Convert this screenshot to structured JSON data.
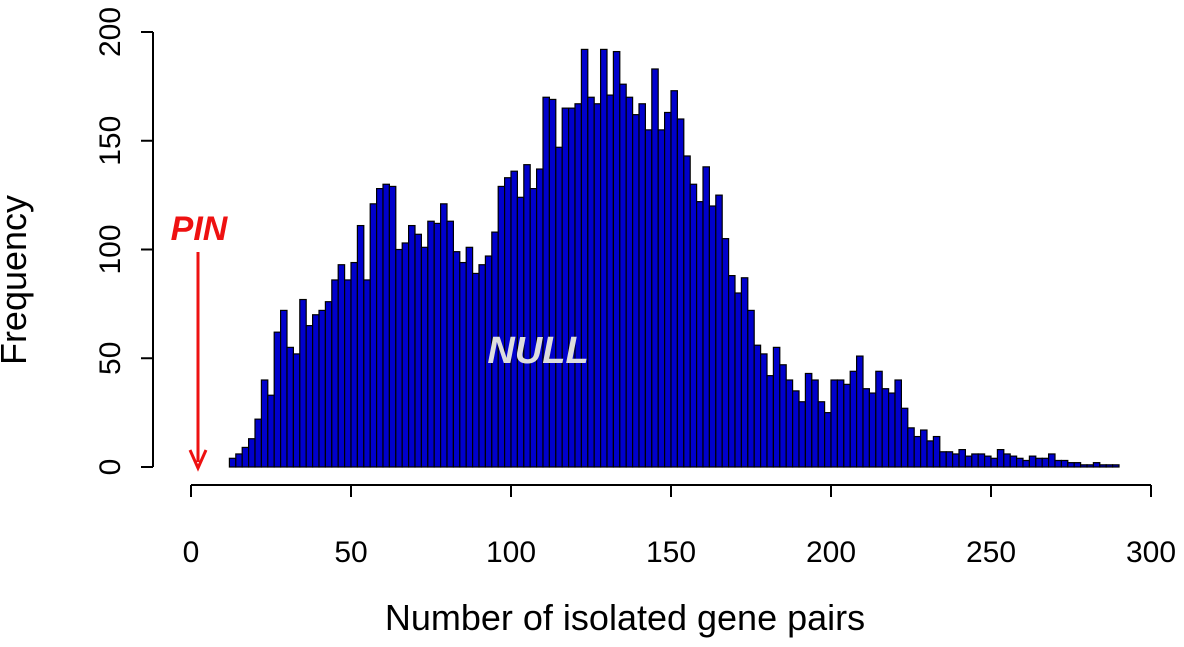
{
  "chart_data": {
    "type": "histogram",
    "xlabel": "Number of isolated gene pairs",
    "ylabel": "Frequency",
    "annotations": [
      "PIN",
      "NULL"
    ],
    "color": "#0000cc",
    "annotation_colors": [
      "#ee1111",
      "#dddddd"
    ],
    "xlim": [
      0,
      300
    ],
    "xticks": [
      0,
      50,
      100,
      150,
      200,
      250,
      300
    ],
    "ylim": [
      0,
      200
    ],
    "yticks": [
      0,
      50,
      100,
      150,
      200
    ],
    "bins": [
      12,
      14,
      16,
      18,
      20,
      22,
      24,
      26,
      28,
      30,
      32,
      34,
      36,
      38,
      40,
      42,
      44,
      46,
      48,
      50,
      52,
      54,
      56,
      58,
      60,
      62,
      64,
      66,
      68,
      70,
      72,
      74,
      76,
      78,
      80,
      82,
      84,
      86,
      88,
      90,
      92,
      94,
      96,
      98,
      100,
      102,
      104,
      106,
      108,
      110,
      112,
      114,
      116,
      118,
      120,
      122,
      124,
      126,
      128,
      130,
      132,
      134,
      136,
      138,
      140,
      142,
      144,
      146,
      148,
      150,
      152,
      154,
      156,
      158,
      160,
      162,
      164,
      166,
      168,
      170,
      172,
      174,
      176,
      178,
      180,
      182,
      184,
      186,
      188,
      190,
      192,
      194,
      196,
      198,
      200,
      202,
      204,
      206,
      208,
      210,
      212,
      214,
      216,
      218,
      220,
      222,
      224,
      226,
      228,
      230,
      232,
      234,
      236,
      238,
      240,
      242,
      244,
      246,
      248,
      250,
      252,
      254,
      256,
      258,
      260,
      262,
      264,
      266,
      268,
      270,
      272,
      274,
      276,
      278,
      280,
      282,
      284,
      286,
      288,
      290
    ],
    "values": [
      4,
      6,
      9,
      13,
      22,
      40,
      33,
      62,
      72,
      55,
      52,
      77,
      65,
      70,
      72,
      76,
      86,
      93,
      86,
      94,
      111,
      86,
      121,
      128,
      130,
      129,
      100,
      103,
      111,
      107,
      101,
      113,
      112,
      121,
      113,
      99,
      94,
      101,
      89,
      93,
      97,
      108,
      129,
      133,
      136,
      124,
      139,
      128,
      137,
      170,
      169,
      147,
      165,
      165,
      167,
      192,
      170,
      167,
      192,
      171,
      191,
      176,
      170,
      162,
      167,
      155,
      183,
      155,
      163,
      173,
      160,
      143,
      130,
      122,
      138,
      120,
      125,
      105,
      88,
      80,
      87,
      72,
      56,
      52,
      42,
      55,
      47,
      40,
      35,
      30,
      43,
      40,
      30,
      25,
      40,
      40,
      38,
      44,
      51,
      36,
      34,
      44,
      36,
      34,
      40,
      27,
      18,
      14,
      17,
      12,
      14,
      7,
      7,
      6,
      8,
      5,
      6,
      6,
      5,
      4,
      8,
      6,
      5,
      4,
      3,
      5,
      4,
      4,
      6,
      3,
      3,
      2,
      2,
      1,
      1,
      2,
      1,
      1,
      1
    ]
  }
}
